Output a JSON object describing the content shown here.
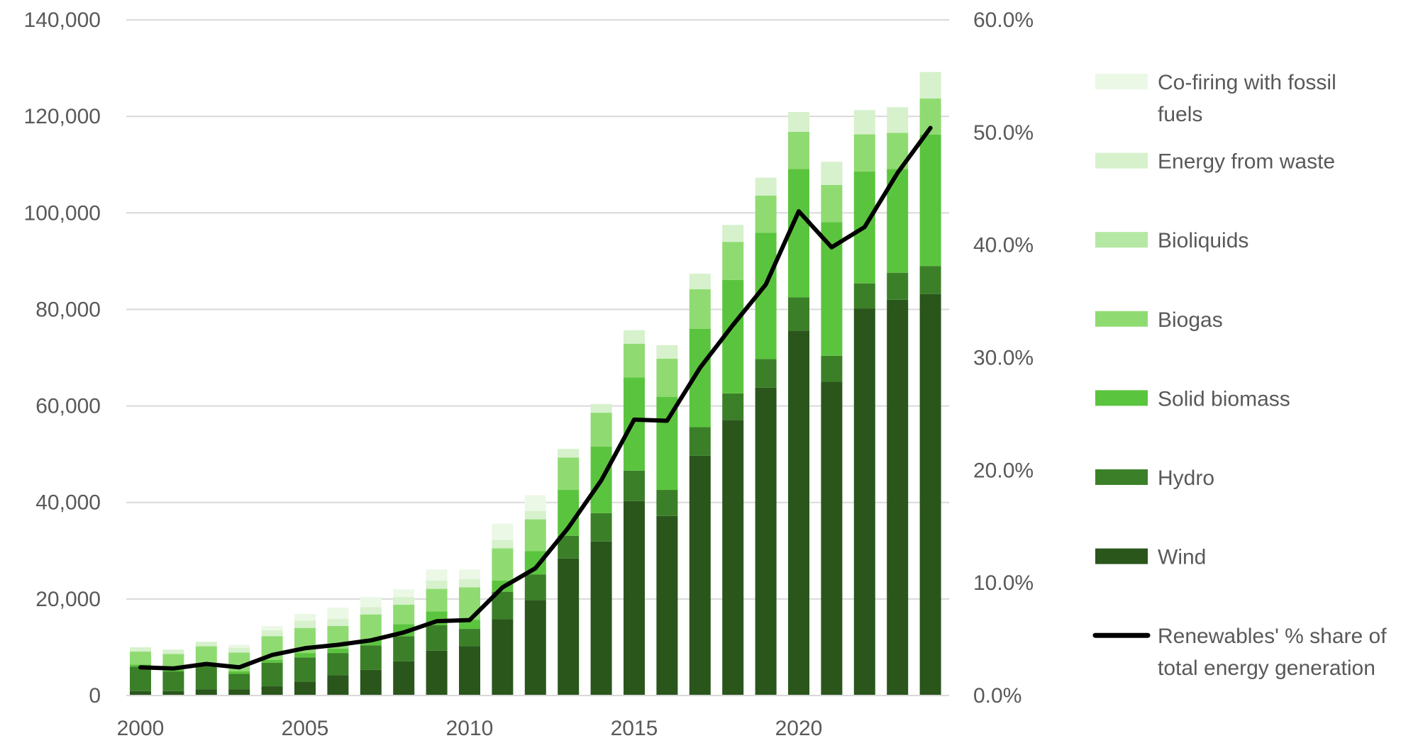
{
  "chart_data": {
    "type": "bar",
    "stacked": true,
    "title": "",
    "xlabel": "",
    "ylabel": "",
    "y2label": "",
    "ylim": [
      0,
      140000
    ],
    "y2lim": [
      0.0,
      60.0
    ],
    "grid": true,
    "legend_position": "right",
    "categories": [
      2000,
      2001,
      2002,
      2003,
      2004,
      2005,
      2006,
      2007,
      2008,
      2009,
      2010,
      2011,
      2012,
      2013,
      2014,
      2015,
      2016,
      2017,
      2018,
      2019,
      2020,
      2021,
      2022,
      2023,
      2024
    ],
    "x_tick_labels": [
      "2000",
      "2005",
      "2010",
      "2015",
      "2020"
    ],
    "y_tick_labels": [
      "0",
      "20,000",
      "40,000",
      "60,000",
      "80,000",
      "100,000",
      "120,000",
      "140,000"
    ],
    "y2_tick_labels": [
      "0.0%",
      "10.0%",
      "20.0%",
      "30.0%",
      "40.0%",
      "50.0%",
      "60.0%"
    ],
    "series": [
      {
        "name": "Wind",
        "color": "#2a561c",
        "values": [
          900,
          900,
          1300,
          1300,
          1900,
          2900,
          4200,
          5300,
          7100,
          9300,
          10200,
          15800,
          19800,
          28400,
          31900,
          40300,
          37200,
          49700,
          57100,
          63800,
          75600,
          65000,
          80200,
          82000,
          83200
        ]
      },
      {
        "name": "Hydro",
        "color": "#3b8028",
        "values": [
          5100,
          4100,
          4800,
          3200,
          4900,
          5000,
          4600,
          5100,
          5200,
          5300,
          3600,
          5700,
          5300,
          4700,
          5900,
          6300,
          5400,
          5900,
          5500,
          5900,
          6900,
          5400,
          5200,
          5600,
          5800
        ]
      },
      {
        "name": "Solid biomass",
        "color": "#5bc43e",
        "values": [
          400,
          400,
          500,
          500,
          600,
          900,
          900,
          1200,
          2500,
          2800,
          1900,
          2300,
          4800,
          9500,
          13800,
          19300,
          19300,
          20400,
          23500,
          26200,
          26600,
          27700,
          23200,
          21500,
          27200
        ]
      },
      {
        "name": "Biogas",
        "color": "#8fdb72",
        "values": [
          2700,
          3200,
          3600,
          3900,
          4900,
          5200,
          4700,
          5200,
          4000,
          4700,
          6700,
          6700,
          6600,
          6700,
          7000,
          7000,
          7900,
          8200,
          7900,
          7700,
          7700,
          7700,
          7700,
          7500,
          7500
        ]
      },
      {
        "name": "Bioliquids",
        "color": "#b5e8a4",
        "values": [
          0,
          0,
          0,
          0,
          0,
          0,
          0,
          0,
          0,
          0,
          0,
          0,
          0,
          0,
          0,
          0,
          0,
          0,
          0,
          0,
          0,
          0,
          0,
          0,
          0
        ]
      },
      {
        "name": "Energy from waste",
        "color": "#d6f1cc",
        "values": [
          900,
          900,
          900,
          1000,
          1200,
          1500,
          1500,
          1500,
          1600,
          1700,
          1700,
          1700,
          1700,
          1800,
          1800,
          2800,
          2800,
          3200,
          3500,
          3700,
          4100,
          4800,
          5000,
          5300,
          5500
        ]
      },
      {
        "name": "Co-firing with fossil fuels",
        "color": "#ebf8e6",
        "values": [
          0,
          0,
          100,
          600,
          900,
          1400,
          2300,
          2100,
          1600,
          2300,
          2000,
          3400,
          3300,
          0,
          0,
          0,
          0,
          0,
          0,
          0,
          0,
          0,
          0,
          0,
          0
        ]
      }
    ],
    "line_series": {
      "name": "Renewables' % share of total energy generation",
      "color": "#000000",
      "axis": "right",
      "values": [
        2.5,
        2.4,
        2.8,
        2.5,
        3.6,
        4.2,
        4.5,
        4.9,
        5.6,
        6.6,
        6.7,
        9.6,
        11.3,
        14.9,
        19.1,
        24.5,
        24.4,
        29.1,
        32.9,
        36.5,
        43.0,
        39.8,
        41.6,
        46.4,
        50.4
      ]
    },
    "legend_order": [
      "Co-firing with fossil fuels",
      "Energy from waste",
      "Bioliquids",
      "Biogas",
      "Solid biomass",
      "Hydro",
      "Wind",
      "Renewables' % share of total energy generation"
    ],
    "legend_lines": [
      [
        "Co-firing with fossil",
        "fuels"
      ],
      [
        "Energy from waste"
      ],
      [
        "Bioliquids"
      ],
      [
        "Biogas"
      ],
      [
        "Solid biomass"
      ],
      [
        "Hydro"
      ],
      [
        "Wind"
      ],
      [
        "Renewables' % share of",
        "total energy generation"
      ]
    ]
  }
}
